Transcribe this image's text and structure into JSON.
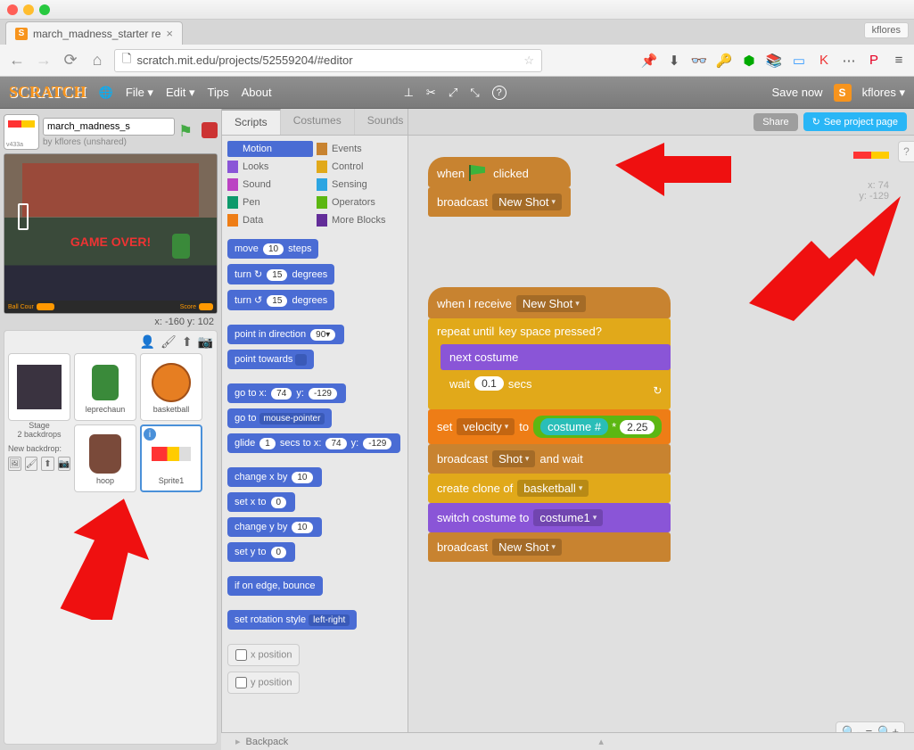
{
  "browser_tab": {
    "title": "march_madness_starter re",
    "user": "kflores"
  },
  "url": "scratch.mit.edu/projects/52559204/#editor",
  "scratch_menu": {
    "file": "File ▾",
    "edit": "Edit ▾",
    "tips": "Tips",
    "about": "About",
    "save": "Save now",
    "user": "kflores ▾"
  },
  "project": {
    "title": "march_madness_s",
    "by": "by kflores (unshared)",
    "version": "v433a",
    "coords": "x: -160  y: 102"
  },
  "stage_text": "GAME OVER!",
  "stage_footer_left": "Ball Cour",
  "stage_footer_right": "Score",
  "stage_info": {
    "label": "Stage",
    "sub": "2 backdrops",
    "new": "New backdrop:"
  },
  "sprites": [
    {
      "name": "leprechaun"
    },
    {
      "name": "basketball"
    },
    {
      "name": "hoop"
    },
    {
      "name": "Sprite1"
    }
  ],
  "tabs": {
    "scripts": "Scripts",
    "costumes": "Costumes",
    "sounds": "Sounds"
  },
  "categories_left": [
    {
      "label": "Motion",
      "color": "#4a6cd4",
      "active": true
    },
    {
      "label": "Looks",
      "color": "#8a55d7"
    },
    {
      "label": "Sound",
      "color": "#bb42c3"
    },
    {
      "label": "Pen",
      "color": "#0e9a6c"
    },
    {
      "label": "Data",
      "color": "#ee7d16"
    }
  ],
  "categories_right": [
    {
      "label": "Events",
      "color": "#c88330"
    },
    {
      "label": "Control",
      "color": "#e1a91a"
    },
    {
      "label": "Sensing",
      "color": "#2ca5e2"
    },
    {
      "label": "Operators",
      "color": "#5cb712"
    },
    {
      "label": "More Blocks",
      "color": "#632d99"
    }
  ],
  "palette": [
    {
      "html": "move <span class='pill'>10</span> steps"
    },
    {
      "html": "turn ↻ <span class='pill'>15</span> degrees"
    },
    {
      "html": "turn ↺ <span class='pill'>15</span> degrees"
    },
    {
      "gap": 1
    },
    {
      "html": "point in direction <span class='pill'>90▾</span>",
      "hat": 0
    },
    {
      "html": "point towards <span class='dd'>&nbsp;</span>"
    },
    {
      "gap": 1
    },
    {
      "html": "go to x: <span class='pill'>74</span> y: <span class='pill'>-129</span>"
    },
    {
      "html": "go to <span class='dd'>mouse-pointer</span>"
    },
    {
      "html": "glide <span class='pill'>1</span> secs to x: <span class='pill'>74</span> y: <span class='pill'>-129</span>"
    },
    {
      "gap": 1
    },
    {
      "html": "change x by <span class='pill'>10</span>"
    },
    {
      "html": "set x to <span class='pill'>0</span>"
    },
    {
      "html": "change y by <span class='pill'>10</span>"
    },
    {
      "html": "set y to <span class='pill'>0</span>"
    },
    {
      "gap": 1
    },
    {
      "html": "if on edge, bounce"
    },
    {
      "gap": 1
    },
    {
      "html": "set rotation style <span class='dd'>left-right</span>"
    },
    {
      "gap": 1
    },
    {
      "html": "x position",
      "reporter": 1
    },
    {
      "html": "y position",
      "reporter": 1
    }
  ],
  "buttons": {
    "share": "Share",
    "project": "See project page"
  },
  "readout": {
    "x": "x: 74",
    "y": "y: -129"
  },
  "backpack": "Backpack",
  "script1": {
    "when_clicked": "when",
    "clicked": "clicked",
    "broadcast": "broadcast",
    "new_shot": "New Shot"
  },
  "script2": {
    "when_receive": "when I receive",
    "new_shot": "New Shot",
    "repeat_until": "repeat until",
    "key": "key",
    "space": "space",
    "pressed": "pressed?",
    "next_costume": "next costume",
    "wait": "wait",
    "wait_val": "0.1",
    "secs": "secs",
    "set": "set",
    "velocity": "velocity",
    "to": "to",
    "costume_num": "costume #",
    "mult": "*",
    "factor": "2.25",
    "broadcast": "broadcast",
    "shot": "Shot",
    "and_wait": "and wait",
    "create_clone": "create clone of",
    "basketball": "basketball",
    "switch_costume": "switch costume to",
    "costume1": "costume1",
    "broadcast2": "broadcast",
    "new_shot2": "New Shot"
  }
}
